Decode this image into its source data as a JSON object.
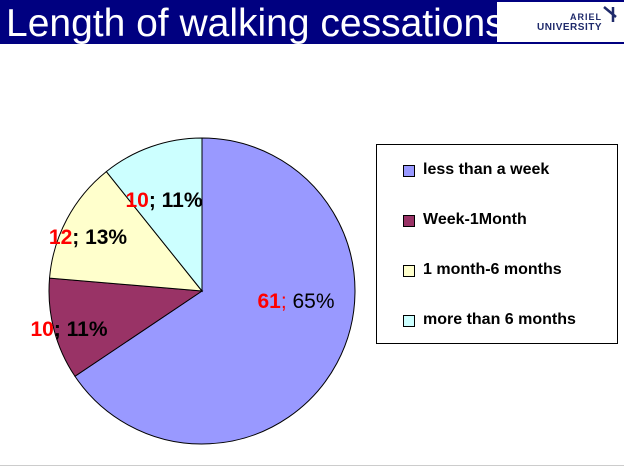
{
  "header": {
    "title": "Length of walking cessations",
    "logo_line1": "ARIEL",
    "logo_line2": "UNIVERSITY"
  },
  "chart_data": {
    "type": "pie",
    "title": "Length of walking cessations",
    "start_angle_deg": 0,
    "direction": "clockwise",
    "slices": [
      {
        "label": "less than a week",
        "value": 61,
        "percent": "65%",
        "color": "#9999ff"
      },
      {
        "label": "Week-1Month",
        "value": 10,
        "percent": "11%",
        "color": "#993366"
      },
      {
        "label": "1 month-6 months",
        "value": 12,
        "percent": "13%",
        "color": "#ffffcc"
      },
      {
        "label": "more than 6 months",
        "value": 10,
        "percent": "11%",
        "color": "#ccffff"
      }
    ],
    "data_label_colors": {
      "value": "#ff0000",
      "percent": "#000000"
    },
    "legend_position": "right"
  }
}
